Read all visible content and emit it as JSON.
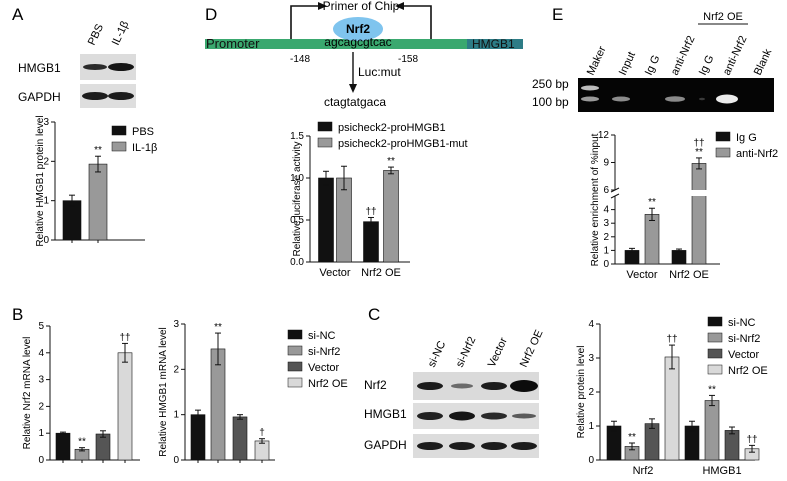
{
  "panels": {
    "A": {
      "label": "A",
      "blot_columns": [
        "PBS",
        "IL-1β"
      ],
      "blot_rows": [
        "HMGB1",
        "GAPDH"
      ]
    },
    "B": {
      "label": "B"
    },
    "C": {
      "label": "C",
      "blot_columns": [
        "si-NC",
        "si-Nrf2",
        "Vector",
        "Nrf2 OE"
      ],
      "blot_rows": [
        "Nrf2",
        "HMGB1",
        "GAPDH"
      ]
    },
    "D": {
      "label": "D",
      "primer_label": "Primer of Chip",
      "factor": "Nrf2",
      "promoter_label": "Promoter",
      "gene_label": "HMGB1",
      "site_seq": "agcagcgtcac",
      "pos_left": "-148",
      "pos_right": "-158",
      "mut_label": "Luc:mut",
      "mut_seq": "ctagtatgaca"
    },
    "E": {
      "label": "E",
      "gel_columns": [
        "Maker",
        "Input",
        "Ig G",
        "anti-Nrf2",
        "Ig G",
        "anti-Nrf2",
        "Blank"
      ],
      "oe_label": "Nrf2 OE",
      "ladder": [
        "250 bp",
        "100 bp"
      ]
    }
  },
  "chart_data": [
    {
      "id": "A",
      "type": "bar",
      "categories": [
        "PBS",
        "IL-1β"
      ],
      "values": [
        1.0,
        1.93
      ],
      "errors": [
        0.14,
        0.2
      ],
      "colors": [
        "#111111",
        "#999999"
      ],
      "ylabel": "Relative HMGB1 protein level",
      "ylim": [
        0,
        3
      ],
      "yticks": [
        "0",
        "1",
        "2",
        "3"
      ],
      "legend": [
        "PBS",
        "IL-1β"
      ],
      "annotations": [
        "",
        "**"
      ]
    },
    {
      "id": "B1",
      "type": "bar",
      "categories": [
        "si-NC",
        "si-Nrf2",
        "Vector",
        "Nrf2 OE"
      ],
      "values": [
        1.0,
        0.4,
        0.97,
        4.0
      ],
      "errors": [
        0.04,
        0.06,
        0.12,
        0.35
      ],
      "colors": [
        "#111111",
        "#999999",
        "#555555",
        "#d9d9d9"
      ],
      "ylabel": "Relative Nrf2 mRNA level",
      "ylim": [
        0,
        5
      ],
      "yticks": [
        "0",
        "1",
        "2",
        "3",
        "4",
        "5"
      ],
      "annotations": [
        "",
        "**",
        "",
        "††"
      ]
    },
    {
      "id": "B2",
      "type": "bar",
      "categories": [
        "si-NC",
        "si-Nrf2",
        "Vector",
        "Nrf2 OE"
      ],
      "values": [
        1.0,
        2.45,
        0.95,
        0.42
      ],
      "errors": [
        0.1,
        0.35,
        0.05,
        0.05
      ],
      "colors": [
        "#111111",
        "#999999",
        "#555555",
        "#d9d9d9"
      ],
      "ylabel": "Relative HMGB1 mRNA level",
      "ylim": [
        0,
        3
      ],
      "yticks": [
        "0",
        "1",
        "2",
        "3"
      ],
      "legend": [
        "si-NC",
        "si-Nrf2",
        "Vector",
        "Nrf2 OE"
      ],
      "annotations": [
        "",
        "**",
        "",
        "†"
      ]
    },
    {
      "id": "C",
      "type": "bar",
      "categories": [
        "Nrf2",
        "HMGB1"
      ],
      "series": [
        {
          "name": "si-NC",
          "values": [
            1.0,
            1.0
          ],
          "errors": [
            0.14,
            0.14
          ]
        },
        {
          "name": "si-Nrf2",
          "values": [
            0.4,
            1.75
          ],
          "errors": [
            0.1,
            0.15
          ]
        },
        {
          "name": "Vector",
          "values": [
            1.07,
            0.87
          ],
          "errors": [
            0.14,
            0.1
          ]
        },
        {
          "name": "Nrf2 OE",
          "values": [
            3.03,
            0.33
          ],
          "errors": [
            0.35,
            0.1
          ]
        }
      ],
      "colors": [
        "#111111",
        "#999999",
        "#555555",
        "#d9d9d9"
      ],
      "ylabel": "Relative protein level",
      "ylim": [
        0,
        4
      ],
      "yticks": [
        "0",
        "1",
        "2",
        "3",
        "4"
      ],
      "annotations": [
        [
          "",
          "**",
          "",
          "††"
        ],
        [
          "",
          "**",
          "",
          "††"
        ]
      ]
    },
    {
      "id": "D",
      "type": "bar",
      "categories": [
        "Vector",
        "Nrf2 OE"
      ],
      "series": [
        {
          "name": "psicheck2-proHMGB1",
          "values": [
            1.0,
            0.48
          ],
          "errors": [
            0.08,
            0.05
          ]
        },
        {
          "name": "psicheck2-proHMGB1-mut",
          "values": [
            1.0,
            1.09
          ],
          "errors": [
            0.14,
            0.04
          ]
        }
      ],
      "colors": [
        "#111111",
        "#999999"
      ],
      "ylabel": "Relative luciferase activity",
      "ylim": [
        0,
        1.5
      ],
      "yticks": [
        "0.0",
        "0.5",
        "1.0",
        "1.5"
      ],
      "annotations": [
        [
          "",
          ""
        ],
        [
          "††",
          "**"
        ]
      ]
    },
    {
      "id": "E",
      "type": "bar",
      "categories": [
        "Vector",
        "Nrf2 OE"
      ],
      "series": [
        {
          "name": "Ig G",
          "values": [
            1.0,
            1.0
          ],
          "errors": [
            0.15,
            0.1
          ]
        },
        {
          "name": "anti-Nrf2",
          "values": [
            3.65,
            8.9
          ],
          "errors": [
            0.45,
            0.6
          ]
        }
      ],
      "colors": [
        "#111111",
        "#999999"
      ],
      "ylabel": "Relative enrichment of %input",
      "ylim": [
        0,
        12
      ],
      "yticks": [
        "0",
        "1",
        "2",
        "3",
        "4",
        "5",
        "6",
        "9",
        "12"
      ],
      "axis_break": [
        5,
        6
      ],
      "annotations": [
        [
          "",
          "**"
        ],
        [
          "",
          "**"
        ]
      ],
      "extra_annotations": [
        "",
        "††"
      ]
    }
  ]
}
